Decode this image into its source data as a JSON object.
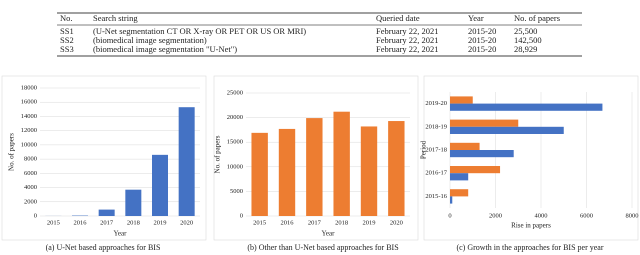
{
  "table": {
    "columns": [
      "No.",
      "Search string",
      "Queried date",
      "Year",
      "No. of papers"
    ],
    "rows": [
      [
        "SS1",
        "(U-Net segmentation CT OR X-ray OR PET OR US OR MRI)",
        "February 22, 2021",
        "2015-20",
        "25,500"
      ],
      [
        "SS2",
        "(biomedical image segmentation)",
        "February 22, 2021",
        "2015-20",
        "142,500"
      ],
      [
        "SS3",
        "(biomedical image segmentation \"U-Net\")",
        "February 22, 2021",
        "2015-20",
        "28,929"
      ]
    ]
  },
  "chart_data": [
    {
      "type": "bar",
      "caption": "(a) U-Net based approaches for BIS",
      "x_label": "Year",
      "y_label": "No. of papers",
      "categories": [
        "2015",
        "2016",
        "2017",
        "2018",
        "2019",
        "2020"
      ],
      "series": [
        {
          "color": "#4472c4",
          "values": [
            10,
            60,
            900,
            3700,
            8600,
            15300
          ]
        }
      ],
      "ylim": [
        0,
        18000
      ],
      "yticks": [
        0,
        2000,
        4000,
        6000,
        8000,
        10000,
        12000,
        14000,
        16000,
        18000
      ]
    },
    {
      "type": "bar",
      "caption": "(b) Other than U-Net based approaches for BIS",
      "x_label": "Year",
      "y_label": "No. of papers",
      "categories": [
        "2015",
        "2016",
        "2017",
        "2018",
        "2019",
        "2020"
      ],
      "series": [
        {
          "color": "#ed7d31",
          "values": [
            16900,
            17700,
            19900,
            21200,
            18200,
            19300
          ]
        }
      ],
      "ylim": [
        0,
        25000
      ],
      "yticks": [
        0,
        5000,
        10000,
        15000,
        20000,
        25000
      ]
    },
    {
      "type": "barh",
      "caption": "(c) Growth in the approaches for BIS per year",
      "x_label": "Rise in papers",
      "y_label": "Period",
      "categories": [
        "2015-16",
        "2016-17",
        "2017-18",
        "2018-19",
        "2019-20"
      ],
      "series": [
        {
          "color": "#ed7d31",
          "values": [
            800,
            2200,
            1300,
            3000,
            1000
          ]
        },
        {
          "color": "#4472c4",
          "values": [
            100,
            800,
            2800,
            5000,
            6700
          ]
        }
      ],
      "xlim": [
        0,
        8000
      ],
      "xticks": [
        0,
        2000,
        4000,
        6000,
        8000
      ]
    }
  ]
}
